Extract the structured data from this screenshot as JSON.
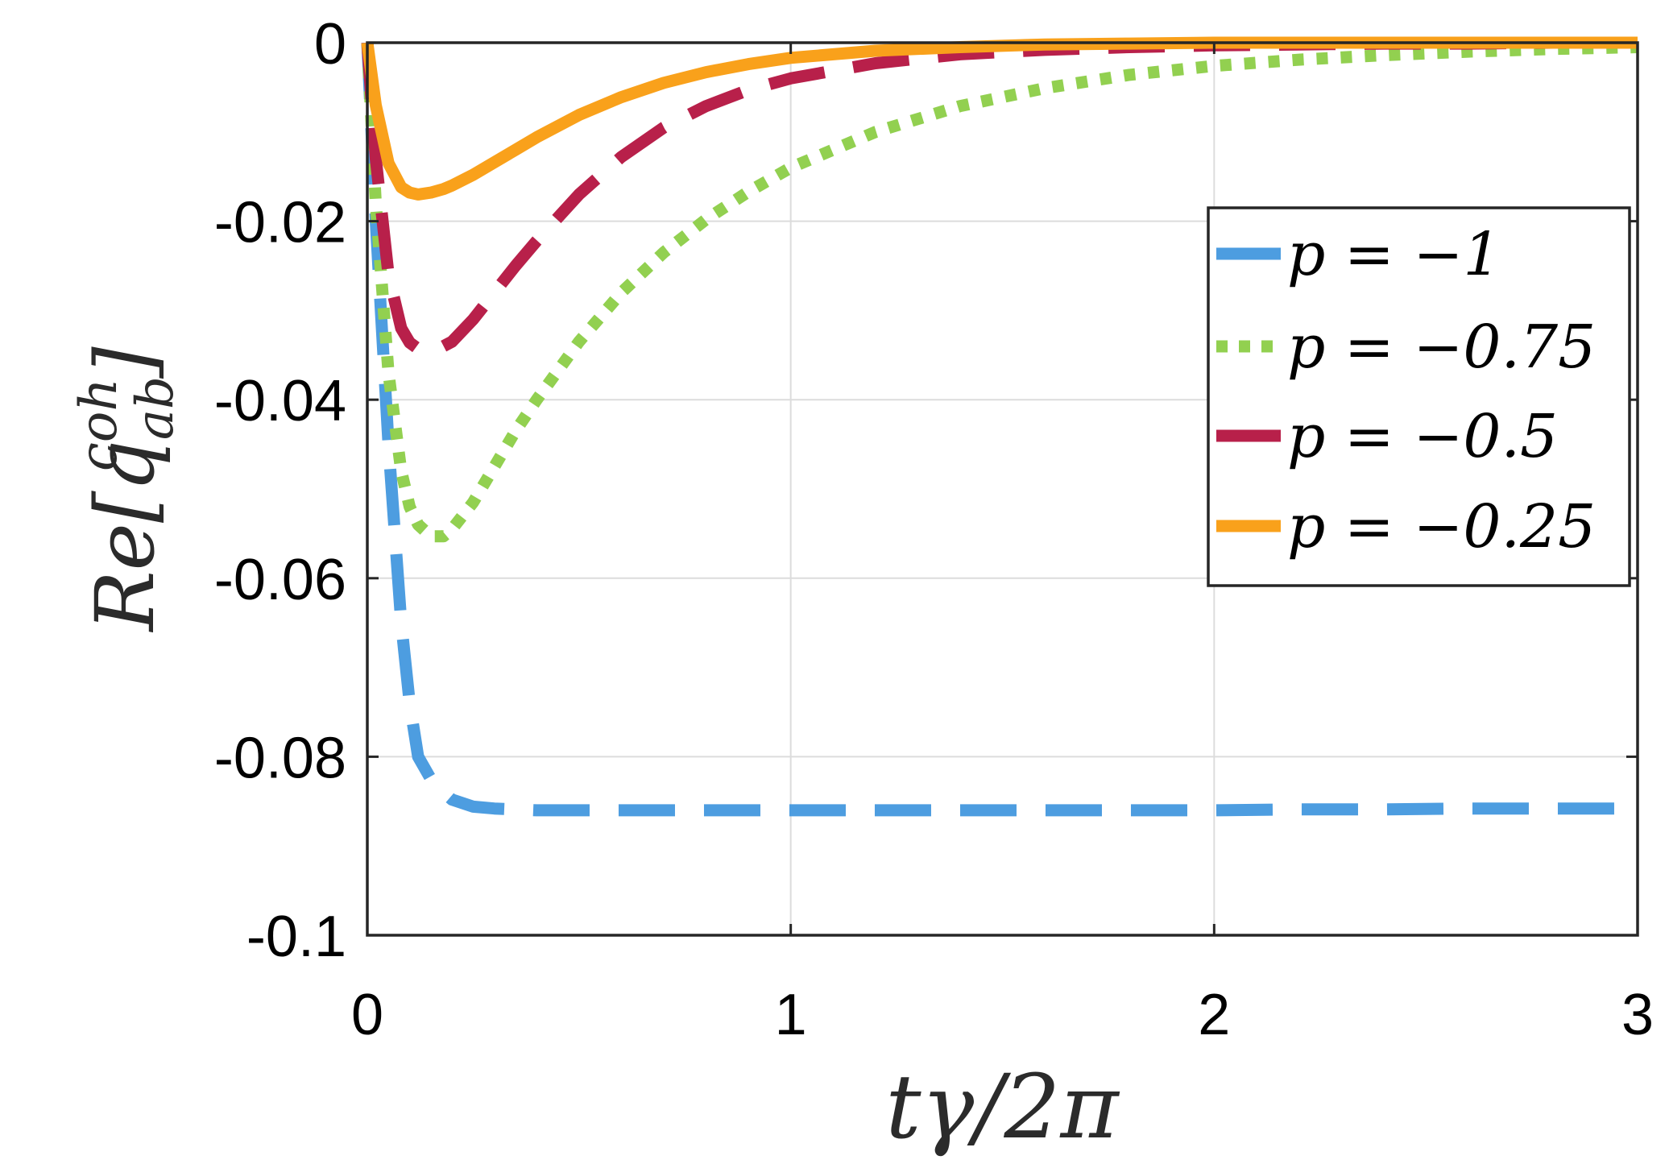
{
  "chart_data": {
    "type": "line",
    "xlabel": "tγ/2π",
    "ylabel": {
      "prefix": "Re[q",
      "subscript": "ab",
      "superscript": "coh",
      "suffix": "]"
    },
    "xlim": [
      0,
      3
    ],
    "ylim": [
      -0.1,
      0
    ],
    "x_ticks": [
      "0",
      "1",
      "2",
      "3"
    ],
    "y_ticks": [
      "0",
      "-0.02",
      "-0.04",
      "-0.06",
      "-0.08",
      "-0.1"
    ],
    "grid": true,
    "legend_position": "right",
    "x": [
      0,
      0.02,
      0.05,
      0.08,
      0.1,
      0.12,
      0.15,
      0.18,
      0.2,
      0.25,
      0.3,
      0.35,
      0.4,
      0.5,
      0.6,
      0.7,
      0.8,
      0.9,
      1.0,
      1.2,
      1.4,
      1.6,
      1.8,
      2.0,
      2.2,
      2.4,
      2.6,
      2.8,
      3.0
    ],
    "series": [
      {
        "name": "p = −1",
        "color": "#4d9de0",
        "style": "dashed",
        "values": [
          0,
          -0.02,
          -0.045,
          -0.065,
          -0.074,
          -0.08,
          -0.0825,
          -0.084,
          -0.0848,
          -0.0856,
          -0.0858,
          -0.0859,
          -0.086,
          -0.086,
          -0.086,
          -0.086,
          -0.086,
          -0.086,
          -0.086,
          -0.086,
          -0.086,
          -0.086,
          -0.086,
          -0.086,
          -0.0859,
          -0.0859,
          -0.0858,
          -0.0858,
          -0.0858
        ]
      },
      {
        "name": "p = −0.75",
        "color": "#92d050",
        "style": "dotted",
        "values": [
          0,
          -0.018,
          -0.037,
          -0.048,
          -0.052,
          -0.054,
          -0.0553,
          -0.0553,
          -0.0545,
          -0.0515,
          -0.0475,
          -0.0435,
          -0.04,
          -0.0335,
          -0.028,
          -0.0235,
          -0.0198,
          -0.0167,
          -0.014,
          -0.01,
          -0.0071,
          -0.0051,
          -0.0036,
          -0.0026,
          -0.0019,
          -0.0014,
          -0.001,
          -0.0007,
          -0.0005
        ]
      },
      {
        "name": "p = −0.5",
        "color": "#b8204a",
        "style": "dashed",
        "values": [
          0,
          -0.013,
          -0.026,
          -0.032,
          -0.0336,
          -0.0343,
          -0.0345,
          -0.034,
          -0.0335,
          -0.031,
          -0.028,
          -0.025,
          -0.0222,
          -0.017,
          -0.0128,
          -0.0095,
          -0.0071,
          -0.0053,
          -0.004,
          -0.0023,
          -0.0013,
          -0.0008,
          -0.0005,
          -0.0003,
          -0.0002,
          -0.0001,
          -0.0001,
          0,
          0
        ]
      },
      {
        "name": "p = −0.25",
        "color": "#f9a11b",
        "style": "solid",
        "values": [
          0,
          -0.007,
          -0.0135,
          -0.0162,
          -0.0168,
          -0.017,
          -0.0168,
          -0.0164,
          -0.016,
          -0.0148,
          -0.0134,
          -0.012,
          -0.0106,
          -0.0081,
          -0.0061,
          -0.0045,
          -0.0033,
          -0.0024,
          -0.0017,
          -0.0009,
          -0.0005,
          -0.0002,
          -0.0001,
          0,
          0,
          0,
          0,
          0,
          0
        ]
      }
    ]
  }
}
